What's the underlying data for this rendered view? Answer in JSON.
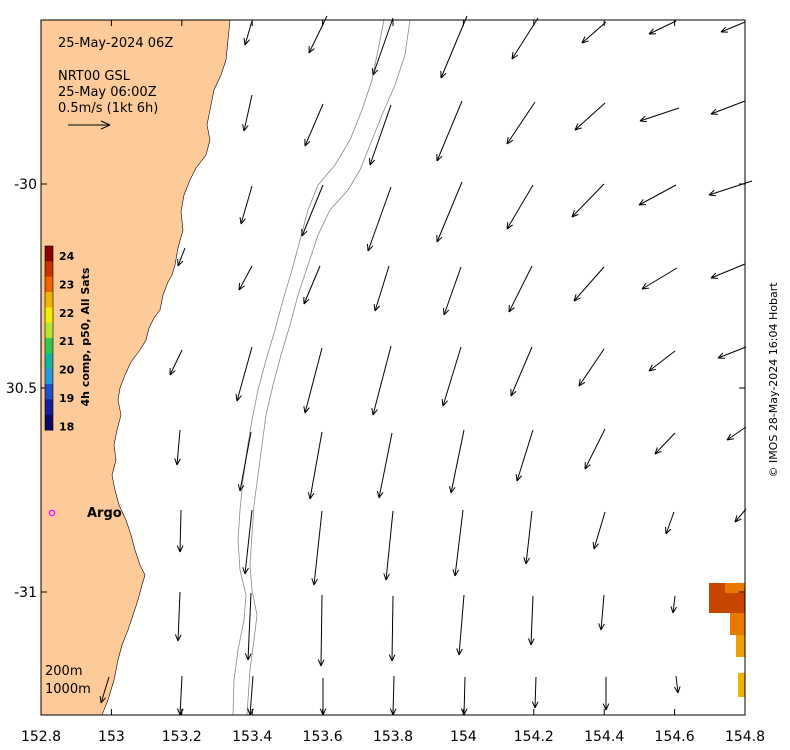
{
  "header": {
    "date_title": "25-May-2024 06Z",
    "product": "NRT00 GSL",
    "product_time": "25-May 06:00Z",
    "scale_label": "0.5m/s (1kt 6h)"
  },
  "colorbar": {
    "title": "4h comp, p50, All Sats",
    "ticks": [
      "24",
      "23",
      "22",
      "21",
      "20",
      "19",
      "18"
    ],
    "colors": [
      "#8b0000",
      "#c83200",
      "#f06400",
      "#f0b400",
      "#f0f000",
      "#b4e632",
      "#32c850",
      "#14b4a0",
      "#2896dc",
      "#1e50c8",
      "#141e96",
      "#0a0a64"
    ]
  },
  "argo": {
    "label": "Argo",
    "marker_color": "#ff00ff"
  },
  "legend": {
    "contour_1": "200m",
    "contour_2": "1000m"
  },
  "credit": "© IMOS 28-May-2024 16:04 Hobart",
  "axes": {
    "x_ticks": [
      "152.8",
      "153",
      "153.2",
      "153.4",
      "153.6",
      "153.8",
      "154",
      "154.2",
      "154.4",
      "154.6",
      "154.8"
    ],
    "y_ticks": [
      "-30",
      "30.5",
      "-31"
    ]
  },
  "colors": {
    "land": "#fdcb99",
    "contour": "#888888",
    "arrow": "#000000",
    "sst_hot": "#c84600",
    "sst_warm": "#e87800",
    "sst_yellow": "#f0b400"
  }
}
